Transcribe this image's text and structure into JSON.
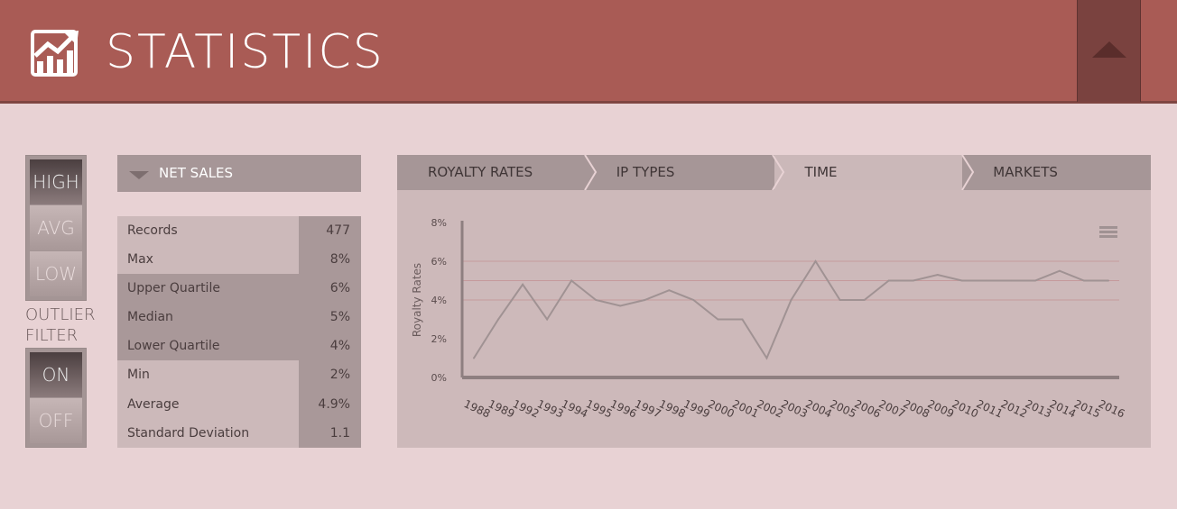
{
  "header": {
    "title": "STATISTICS",
    "logo_icon": "chart-growth-icon",
    "collapse_icon": "triangle-up-icon"
  },
  "level_toggle": {
    "options": [
      "HIGH",
      "AVG",
      "LOW"
    ],
    "selected": "HIGH"
  },
  "outlier": {
    "label_line1": "OUTLIER",
    "label_line2": "FILTER",
    "options": [
      "ON",
      "OFF"
    ],
    "selected": "ON"
  },
  "dropdown": {
    "label": "NET SALES"
  },
  "stats": [
    {
      "label": "Records",
      "value": "477"
    },
    {
      "label": "Max",
      "value": "8%"
    },
    {
      "label": "Upper Quartile",
      "value": "6%"
    },
    {
      "label": "Median",
      "value": "5%"
    },
    {
      "label": "Lower Quartile",
      "value": "4%"
    },
    {
      "label": "Min",
      "value": "2%"
    },
    {
      "label": "Average",
      "value": "4.9%"
    },
    {
      "label": "Standard Deviation",
      "value": "1.1"
    }
  ],
  "tabs": [
    {
      "label": "ROYALTY RATES"
    },
    {
      "label": "IP TYPES"
    },
    {
      "label": "TIME",
      "active": true
    },
    {
      "label": "MARKETS"
    }
  ],
  "colors": {
    "header": "#a95b55",
    "background": "#e8d2d4",
    "line": "#a09293",
    "reference_lines": "#c59a9c"
  },
  "chart_data": {
    "type": "line",
    "ylabel": "Royalty Rates",
    "ylim": [
      0,
      8
    ],
    "yticks": [
      "0%",
      "2%",
      "4%",
      "6%",
      "8%"
    ],
    "reference_lines": [
      4,
      5,
      6
    ],
    "categories": [
      "1988",
      "1989",
      "1992",
      "1993",
      "1994",
      "1995",
      "1996",
      "1997",
      "1998",
      "1999",
      "2000",
      "2001",
      "2002",
      "2003",
      "2004",
      "2005",
      "2006",
      "2007",
      "2008",
      "2009",
      "2010",
      "2011",
      "2012",
      "2013",
      "2014",
      "2015",
      "2016"
    ],
    "values": [
      1,
      3,
      4.8,
      3,
      5,
      4,
      3.7,
      4,
      4.5,
      4,
      3,
      3,
      1,
      4,
      6,
      4,
      4,
      5,
      5,
      5.3,
      5,
      5,
      5,
      5,
      5.5,
      5,
      5
    ],
    "menu_icon": "hamburger-menu-icon"
  }
}
